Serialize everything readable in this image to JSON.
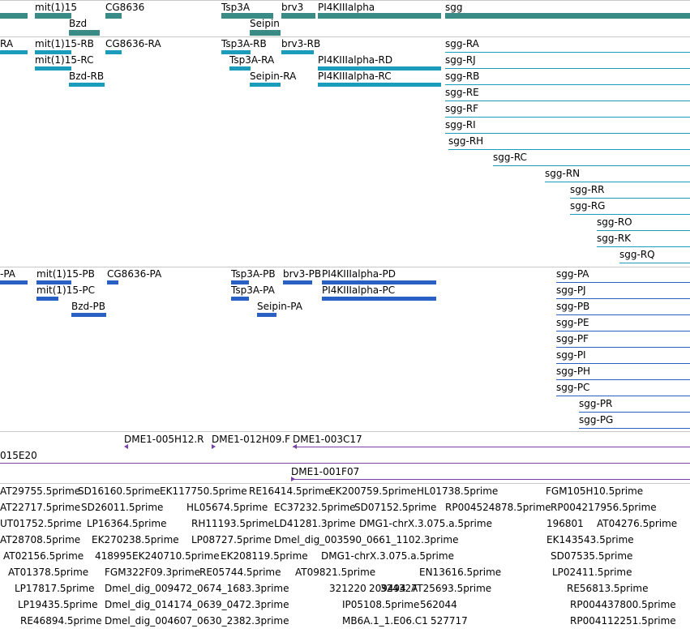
{
  "tracks": {
    "genes": {
      "labels": [
        "mit(1)15",
        "CG8636",
        "Tsp3A",
        "brv3",
        "PI4KIIIalpha",
        "sgg",
        "Bzd",
        "Seipin"
      ],
      "color": "#3a8a86"
    },
    "transcripts": {
      "labels": [
        "RA",
        "mit(1)15-RB",
        "CG8636-RA",
        "Tsp3A-RB",
        "brv3-RB",
        "sgg-RA",
        "mit(1)15-RC",
        "Tsp3A-RA",
        "PI4KIIIalpha-RD",
        "sgg-RJ",
        "Bzd-RB",
        "Seipin-RA",
        "PI4KIIIalpha-RC",
        "sgg-RB",
        "sgg-RE",
        "sgg-RF",
        "sgg-RI",
        "sgg-RH",
        "sgg-RC",
        "sgg-RN",
        "sgg-RR",
        "sgg-RG",
        "sgg-RO",
        "sgg-RK",
        "sgg-RQ"
      ],
      "color": "#1a9cba"
    },
    "proteins": {
      "labels": [
        "-PA",
        "mit(1)15-PB",
        "CG8636-PA",
        "Tsp3A-PB",
        "brv3-PB",
        "PI4KIIIalpha-PD",
        "sgg-PA",
        "mit(1)15-PC",
        "Tsp3A-PA",
        "PI4KIIIalpha-PC",
        "sgg-PJ",
        "Bzd-PB",
        "Seipin-PA",
        "sgg-PB",
        "sgg-PE",
        "sgg-PF",
        "sgg-PI",
        "sgg-PH",
        "sgg-PC",
        "sgg-PR",
        "sgg-PG"
      ],
      "color": "#2a5fc4"
    },
    "clones": {
      "labels": [
        "DME1-005H12.R",
        "DME1-012H09.F",
        "DME1-003C17",
        "015E20",
        "DME1-001F07"
      ],
      "color": "#7a3fa8"
    },
    "ests": {
      "labels": [
        "AT29755.5prime",
        "SD16160.5prime",
        "EK117750.5prime",
        "RE16414.5prime",
        "EK200759.5prime",
        "HL01738.5prime",
        "FGM105H10.5prime",
        "AT22717.5prime",
        "SD26011.5prime",
        "HL05674.5prime",
        "EC37232.5prime",
        "SD07152.5prime",
        "RP004524878.5prime",
        "RP004217956.5prime",
        "UT01752.5prime",
        "LP16364.5prime",
        "RH11193.5prime",
        "LD41281.3prime",
        "DMG1-chrX.3.075.a.5prime",
        "196801",
        "AT04276.5prime",
        "AT28708.5prime",
        "EK270238.5prime",
        "LP08727.5prime",
        "Dmel_dig_003590_0661_1102.3prime",
        "EK143543.5prime",
        "AT02156.5prime",
        "418995",
        "EK240710.5prime",
        "EK208119.5prime",
        "DMG1-chrX.3.075.a.5prime",
        "SD07535.5prime",
        "AT01378.5prime",
        "FGM322F09.3prime",
        "RE05744.5prime",
        "AT09821.5prime",
        "EN13616.5prime",
        "LP02411.5prime",
        "LP17817.5prime",
        "Dmel_dig_009472_0674_1683.3prime",
        "321220",
        "209494",
        "324327",
        "AT25693.5prime",
        "RE56813.5prime",
        "LP19435.5prime",
        "Dmel_dig_014174_0639_0472.3prime",
        "IP05108.5prime",
        "562044",
        "RP004437800.5prime",
        "RE46894.5prime",
        "Dmel_dig_004607_0630_2382.3prime",
        "MB6A.1_1.E06.C1",
        "527717",
        "RP004112251.5prime"
      ],
      "color": "#7fb3dc"
    }
  }
}
